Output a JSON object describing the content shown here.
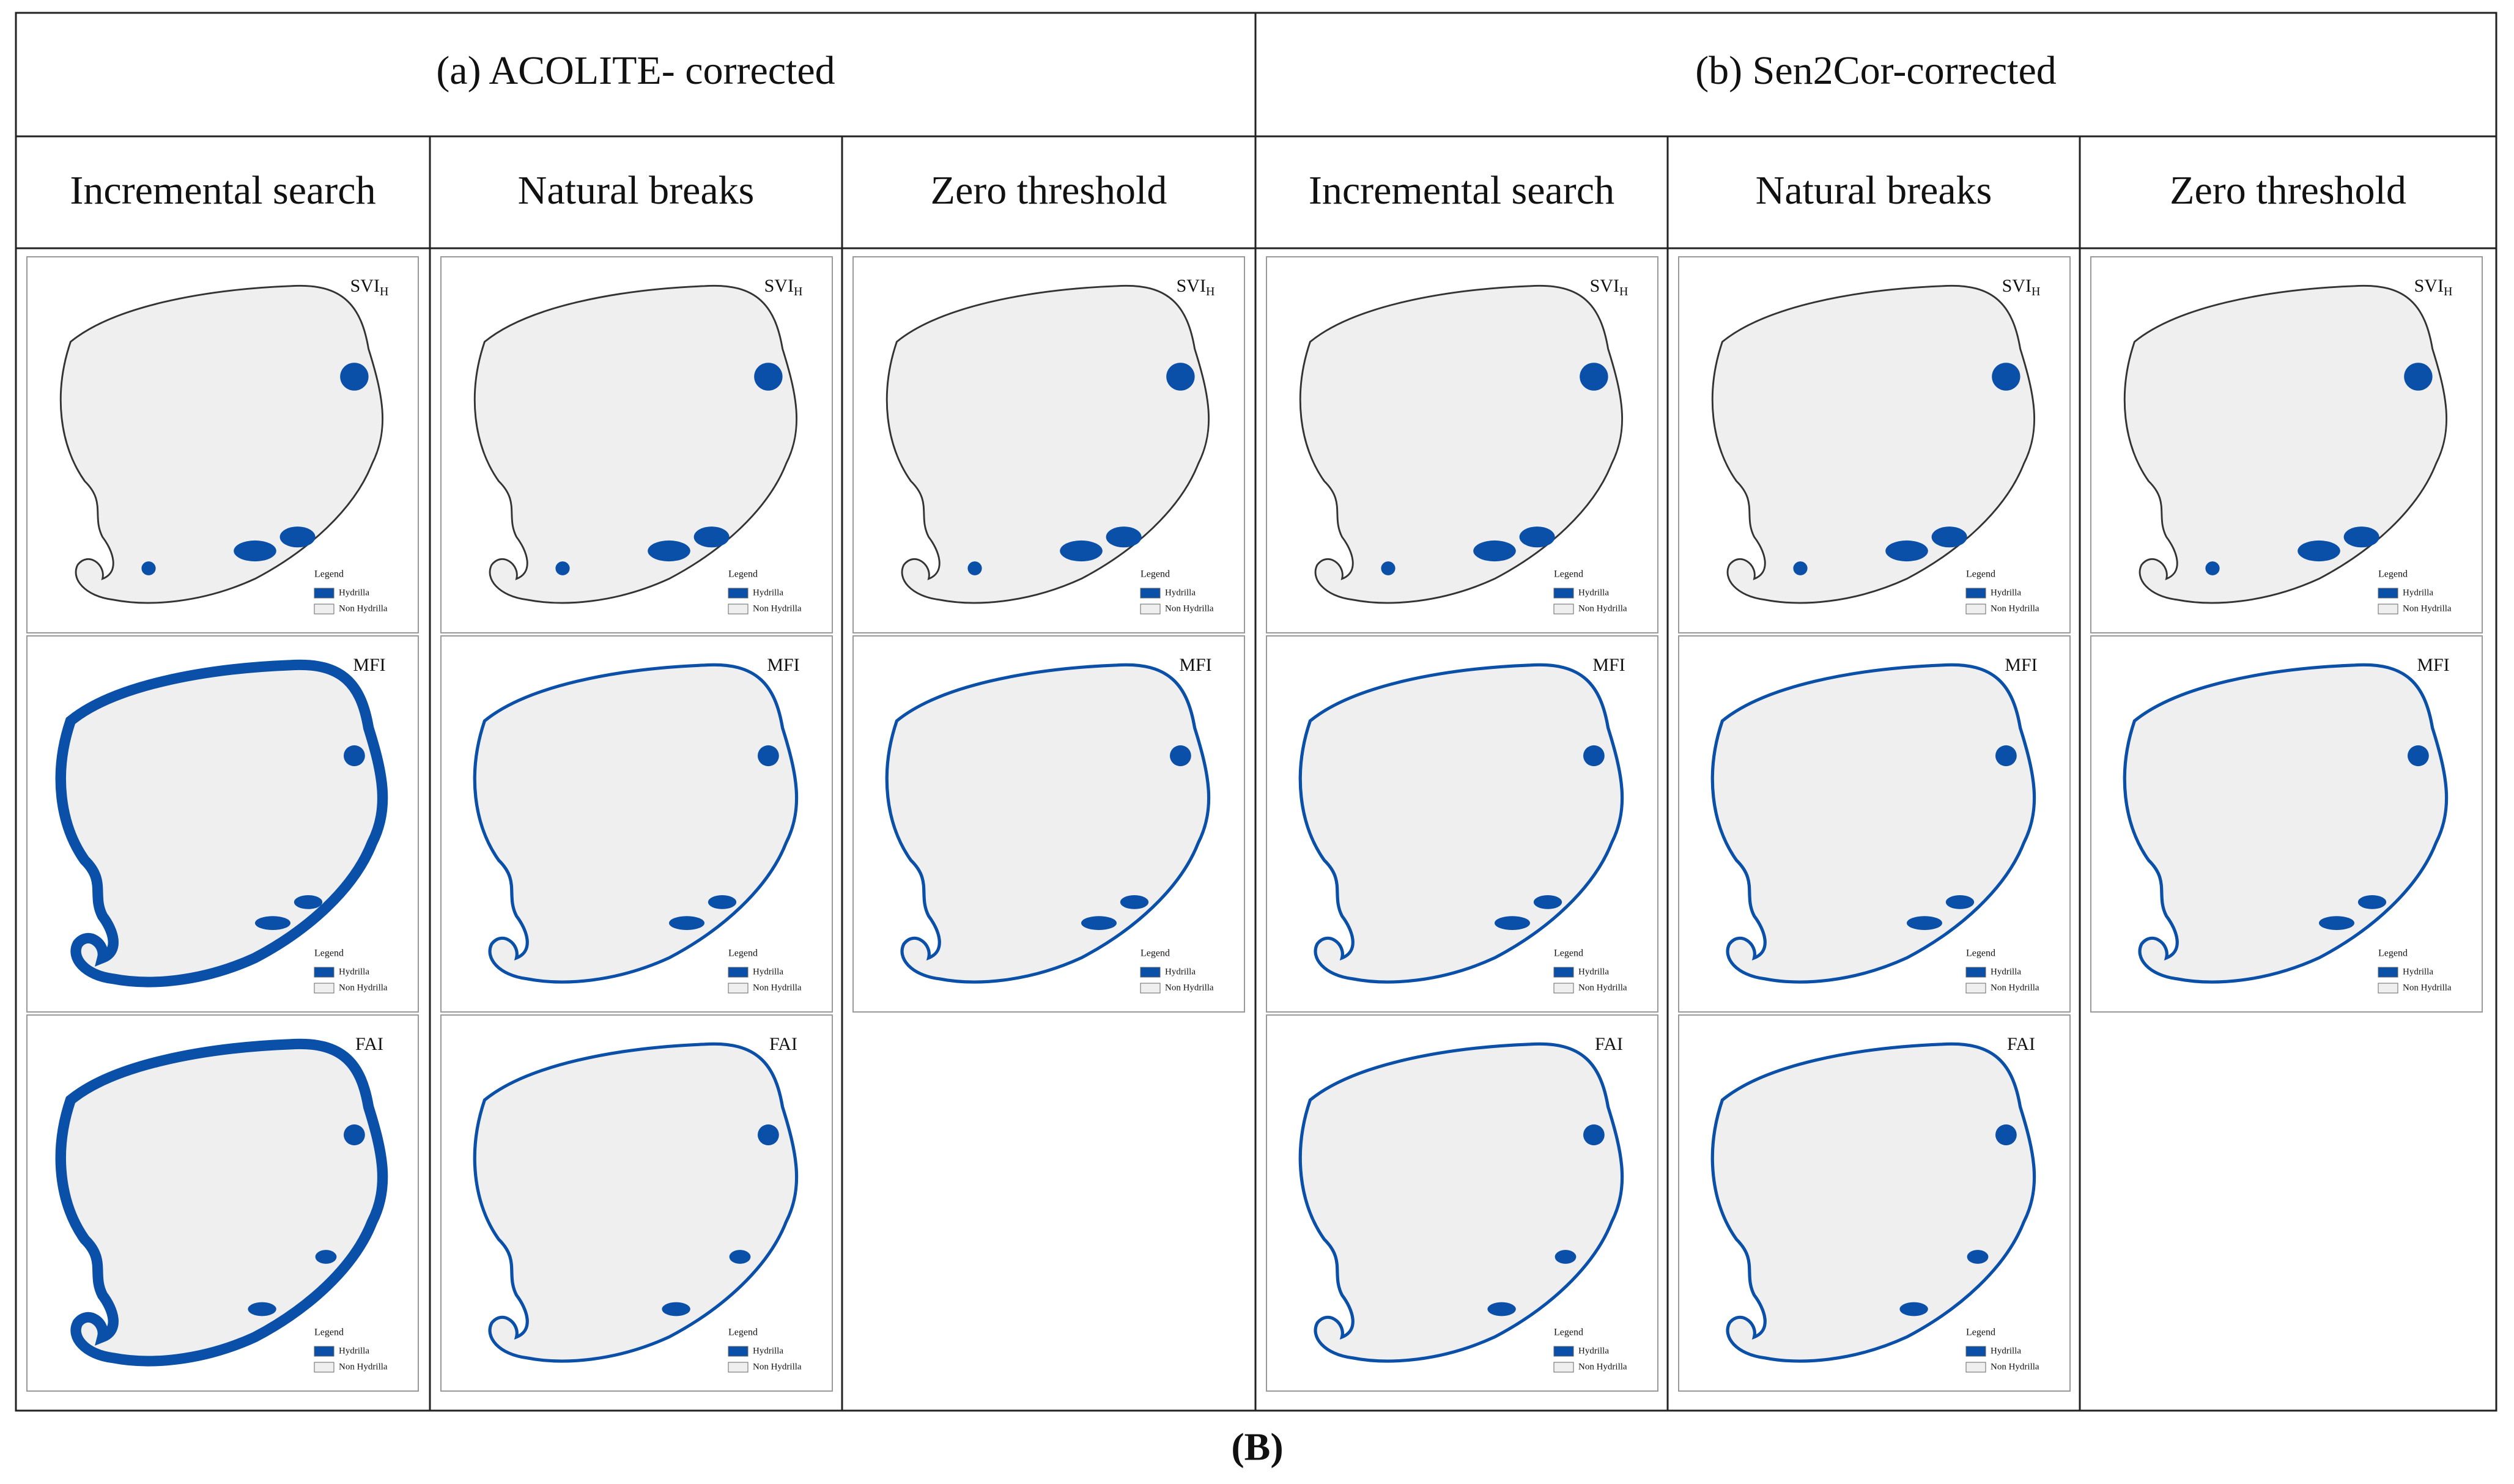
{
  "header": {
    "groups": [
      {
        "title": "(a)   ACOLITE- corrected",
        "columns": [
          {
            "title": "Incremental search",
            "panels": [
              {
                "index": "SVI",
                "subscript": "H"
              },
              {
                "index": "MFI"
              },
              {
                "index": "FAI"
              }
            ]
          },
          {
            "title": "Natural breaks",
            "panels": [
              {
                "index": "SVI",
                "subscript": "H"
              },
              {
                "index": "MFI"
              },
              {
                "index": "FAI"
              }
            ]
          },
          {
            "title": "Zero threshold",
            "panels": [
              {
                "index": "SVI",
                "subscript": "H"
              },
              {
                "index": "MFI"
              }
            ]
          }
        ]
      },
      {
        "title": "(b) Sen2Cor-corrected",
        "columns": [
          {
            "title": "Incremental search",
            "panels": [
              {
                "index": "SVI",
                "subscript": "H"
              },
              {
                "index": "MFI"
              },
              {
                "index": "FAI"
              }
            ]
          },
          {
            "title": "Natural breaks",
            "panels": [
              {
                "index": "SVI",
                "subscript": "H"
              },
              {
                "index": "MFI"
              },
              {
                "index": "FAI"
              }
            ]
          },
          {
            "title": "Zero threshold",
            "panels": [
              {
                "index": "SVI",
                "subscript": "H"
              },
              {
                "index": "MFI"
              }
            ]
          }
        ]
      }
    ]
  },
  "legend": {
    "title": "Legend",
    "items": [
      "Hydrilla",
      "Non Hydrilla"
    ]
  },
  "caption": "(B)"
}
